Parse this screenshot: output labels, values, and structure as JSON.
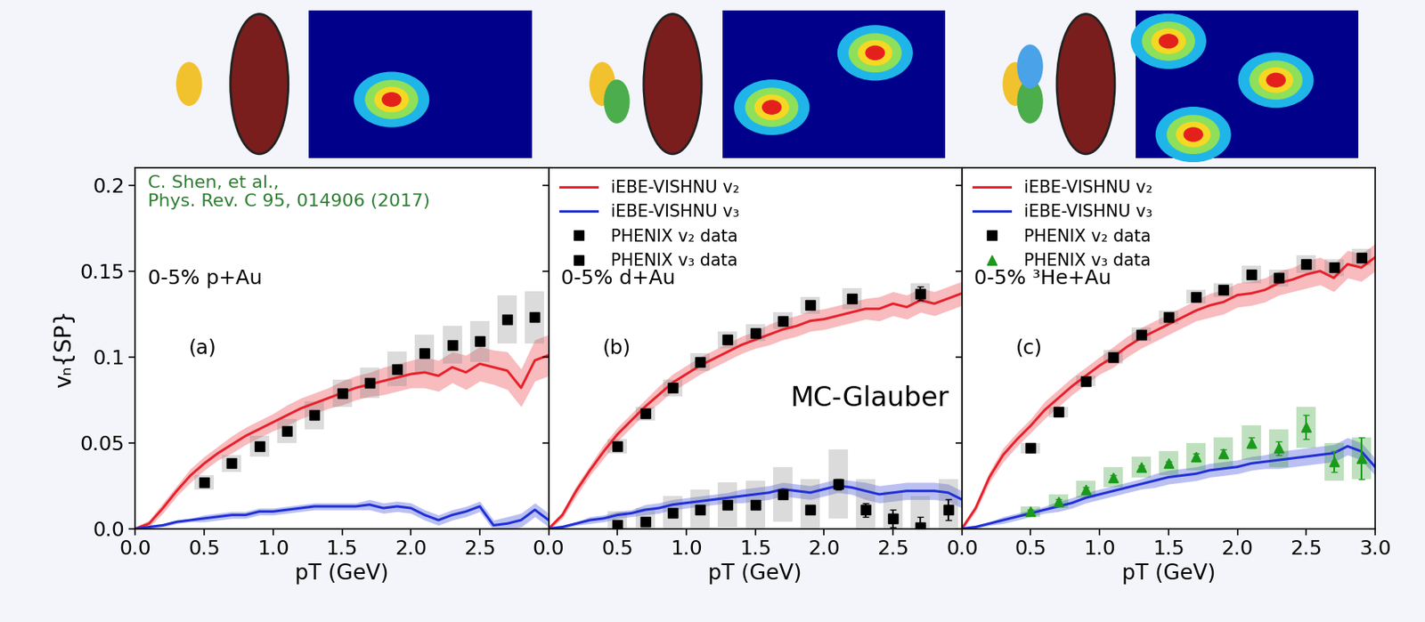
{
  "chart_data": [
    {
      "type": "line",
      "x_label": "pT (GeV)",
      "y_label": "vₙ{SP}",
      "xlim": [
        0.0,
        3.0
      ],
      "ylim": [
        0.0,
        0.21
      ],
      "xticks": [
        0.0,
        0.5,
        1.0,
        1.5,
        2.0,
        2.5
      ],
      "yticks": [
        0.0,
        0.05,
        0.1,
        0.15,
        0.2
      ],
      "annotations": [
        "C. Shen, et al.,\nPhys. Rev. C 95, 014906 (2017)",
        "0-5% p+Au",
        "(a)"
      ],
      "series": [
        {
          "name": "iEBE-VISHNU v₂",
          "type": "line",
          "color": "#e8202a",
          "line_style": "solid",
          "marker": "none",
          "x": [
            0.0,
            0.1,
            0.2,
            0.3,
            0.4,
            0.5,
            0.6,
            0.7,
            0.8,
            0.9,
            1.0,
            1.1,
            1.2,
            1.3,
            1.4,
            1.5,
            1.6,
            1.7,
            1.8,
            1.9,
            2.0,
            2.1,
            2.2,
            2.3,
            2.4,
            2.5,
            2.6,
            2.7,
            2.8,
            2.9,
            3.0
          ],
          "values": [
            0.0,
            0.003,
            0.012,
            0.022,
            0.031,
            0.038,
            0.044,
            0.049,
            0.054,
            0.058,
            0.062,
            0.066,
            0.07,
            0.073,
            0.076,
            0.079,
            0.082,
            0.084,
            0.086,
            0.088,
            0.09,
            0.091,
            0.089,
            0.094,
            0.091,
            0.096,
            0.094,
            0.092,
            0.082,
            0.098,
            0.101
          ],
          "band": [
            0.001,
            0.002,
            0.003,
            0.003,
            0.004,
            0.004,
            0.004,
            0.005,
            0.005,
            0.005,
            0.005,
            0.006,
            0.006,
            0.006,
            0.006,
            0.007,
            0.007,
            0.007,
            0.008,
            0.008,
            0.008,
            0.009,
            0.009,
            0.009,
            0.01,
            0.01,
            0.01,
            0.011,
            0.011,
            0.012,
            0.012
          ]
        },
        {
          "name": "iEBE-VISHNU v₃",
          "type": "line",
          "color": "#1f2fd6",
          "line_style": "solid",
          "marker": "none",
          "x": [
            0.0,
            0.1,
            0.2,
            0.3,
            0.4,
            0.5,
            0.6,
            0.7,
            0.8,
            0.9,
            1.0,
            1.1,
            1.2,
            1.3,
            1.4,
            1.5,
            1.6,
            1.7,
            1.8,
            1.9,
            2.0,
            2.1,
            2.2,
            2.3,
            2.4,
            2.5,
            2.6,
            2.7,
            2.8,
            2.9,
            3.0
          ],
          "values": [
            0.0,
            0.001,
            0.002,
            0.004,
            0.005,
            0.006,
            0.007,
            0.008,
            0.008,
            0.01,
            0.01,
            0.011,
            0.012,
            0.013,
            0.013,
            0.013,
            0.013,
            0.014,
            0.012,
            0.013,
            0.012,
            0.008,
            0.005,
            0.008,
            0.01,
            0.013,
            0.002,
            0.003,
            0.005,
            0.011,
            0.005
          ],
          "band": [
            0.001,
            0.001,
            0.001,
            0.001,
            0.001,
            0.002,
            0.002,
            0.002,
            0.002,
            0.002,
            0.002,
            0.002,
            0.002,
            0.002,
            0.002,
            0.002,
            0.002,
            0.003,
            0.003,
            0.003,
            0.003,
            0.003,
            0.003,
            0.003,
            0.003,
            0.003,
            0.003,
            0.004,
            0.004,
            0.004,
            0.004
          ]
        },
        {
          "name": "PHENIX v₂ data",
          "type": "scatter",
          "color": "#000000",
          "marker": "square",
          "x": [
            0.5,
            0.7,
            0.9,
            1.1,
            1.3,
            1.5,
            1.7,
            1.9,
            2.1,
            2.3,
            2.5,
            2.7,
            2.9
          ],
          "values": [
            0.027,
            0.038,
            0.048,
            0.057,
            0.066,
            0.079,
            0.085,
            0.093,
            0.102,
            0.107,
            0.109,
            0.122,
            0.123
          ],
          "errors": [
            0.001,
            0.001,
            0.001,
            0.001,
            0.001,
            0.001,
            0.001,
            0.001,
            0.001,
            0.001,
            0.001,
            0.001,
            0.001
          ],
          "sys_errors": [
            0.004,
            0.005,
            0.006,
            0.007,
            0.008,
            0.008,
            0.009,
            0.01,
            0.011,
            0.011,
            0.012,
            0.014,
            0.015
          ]
        }
      ]
    },
    {
      "type": "line",
      "x_label": "pT (GeV)",
      "xlim": [
        0.0,
        3.0
      ],
      "ylim": [
        0.0,
        0.21
      ],
      "xticks": [
        0.0,
        0.5,
        1.0,
        1.5,
        2.0,
        2.5
      ],
      "yticks": [
        0.0,
        0.05,
        0.1,
        0.15,
        0.2
      ],
      "tick_labels": "x",
      "legend": "upper left",
      "annotations": [
        "0-5% d+Au",
        "(b)",
        "MC-Glauber"
      ],
      "series": [
        {
          "name": "iEBE-VISHNU v₂",
          "type": "line",
          "color": "#e8202a",
          "line_style": "solid",
          "marker": "none",
          "x": [
            0.0,
            0.1,
            0.2,
            0.3,
            0.4,
            0.5,
            0.6,
            0.7,
            0.8,
            0.9,
            1.0,
            1.1,
            1.2,
            1.3,
            1.4,
            1.5,
            1.6,
            1.7,
            1.8,
            1.9,
            2.0,
            2.1,
            2.2,
            2.3,
            2.4,
            2.5,
            2.6,
            2.7,
            2.8,
            2.9,
            3.0
          ],
          "values": [
            0.0,
            0.008,
            0.022,
            0.034,
            0.045,
            0.055,
            0.063,
            0.071,
            0.078,
            0.085,
            0.09,
            0.095,
            0.099,
            0.103,
            0.107,
            0.11,
            0.113,
            0.116,
            0.118,
            0.121,
            0.122,
            0.124,
            0.126,
            0.128,
            0.128,
            0.131,
            0.129,
            0.133,
            0.131,
            0.134,
            0.137
          ],
          "band": [
            0.001,
            0.002,
            0.003,
            0.003,
            0.004,
            0.004,
            0.004,
            0.004,
            0.005,
            0.005,
            0.005,
            0.005,
            0.005,
            0.005,
            0.005,
            0.005,
            0.006,
            0.006,
            0.006,
            0.006,
            0.006,
            0.006,
            0.006,
            0.006,
            0.007,
            0.007,
            0.007,
            0.007,
            0.007,
            0.007,
            0.007
          ]
        },
        {
          "name": "iEBE-VISHNU v₃",
          "type": "line",
          "color": "#1f2fd6",
          "line_style": "solid",
          "marker": "none",
          "x": [
            0.0,
            0.1,
            0.2,
            0.3,
            0.4,
            0.5,
            0.6,
            0.7,
            0.8,
            0.9,
            1.0,
            1.1,
            1.2,
            1.3,
            1.4,
            1.5,
            1.6,
            1.7,
            1.8,
            1.9,
            2.0,
            2.1,
            2.2,
            2.3,
            2.4,
            2.5,
            2.6,
            2.7,
            2.8,
            2.9,
            3.0
          ],
          "values": [
            0.0,
            0.001,
            0.003,
            0.005,
            0.006,
            0.008,
            0.009,
            0.011,
            0.012,
            0.014,
            0.015,
            0.016,
            0.017,
            0.018,
            0.019,
            0.02,
            0.021,
            0.023,
            0.022,
            0.021,
            0.023,
            0.025,
            0.024,
            0.022,
            0.02,
            0.021,
            0.022,
            0.022,
            0.022,
            0.021,
            0.017
          ],
          "band": [
            0.001,
            0.001,
            0.001,
            0.002,
            0.002,
            0.002,
            0.002,
            0.003,
            0.003,
            0.003,
            0.003,
            0.003,
            0.003,
            0.003,
            0.004,
            0.004,
            0.004,
            0.004,
            0.004,
            0.004,
            0.004,
            0.004,
            0.004,
            0.005,
            0.005,
            0.005,
            0.005,
            0.005,
            0.005,
            0.005,
            0.005
          ]
        },
        {
          "name": "PHENIX v₂ data",
          "type": "scatter",
          "color": "#000000",
          "marker": "square",
          "x": [
            0.5,
            0.7,
            0.9,
            1.1,
            1.3,
            1.5,
            1.7,
            1.9,
            2.2,
            2.7
          ],
          "values": [
            0.048,
            0.067,
            0.082,
            0.097,
            0.11,
            0.114,
            0.121,
            0.13,
            0.134,
            0.137
          ],
          "errors": [
            0.001,
            0.001,
            0.001,
            0.001,
            0.001,
            0.001,
            0.001,
            0.001,
            0.002,
            0.004
          ],
          "sys_errors": [
            0.004,
            0.004,
            0.005,
            0.005,
            0.005,
            0.005,
            0.005,
            0.005,
            0.006,
            0.006
          ]
        },
        {
          "name": "PHENIX v₃ data",
          "type": "scatter",
          "color": "#000000",
          "marker": "square",
          "x": [
            0.5,
            0.7,
            0.9,
            1.1,
            1.3,
            1.5,
            1.7,
            1.9,
            2.1,
            2.3,
            2.5,
            2.7,
            2.9
          ],
          "values": [
            0.002,
            0.004,
            0.009,
            0.011,
            0.014,
            0.014,
            0.02,
            0.011,
            0.026,
            0.011,
            0.006,
            0.001,
            0.011
          ],
          "errors": [
            0.001,
            0.001,
            0.001,
            0.001,
            0.001,
            0.001,
            0.002,
            0.002,
            0.003,
            0.004,
            0.005,
            0.006,
            0.006
          ],
          "sys_errors": [
            0.008,
            0.008,
            0.01,
            0.012,
            0.013,
            0.014,
            0.016,
            0.018,
            0.02,
            0.018,
            0.016,
            0.018,
            0.018
          ]
        }
      ]
    },
    {
      "type": "line",
      "x_label": "pT (GeV)",
      "xlim": [
        0.0,
        3.0
      ],
      "ylim": [
        0.0,
        0.21
      ],
      "xticks": [
        0.0,
        0.5,
        1.0,
        1.5,
        2.0,
        2.5,
        3.0
      ],
      "yticks": [
        0.0,
        0.05,
        0.1,
        0.15,
        0.2
      ],
      "tick_labels": "x",
      "legend": "upper left",
      "annotations": [
        "0-5% ³He+Au",
        "(c)"
      ],
      "series": [
        {
          "name": "iEBE-VISHNU v₂",
          "type": "line",
          "color": "#e8202a",
          "line_style": "solid",
          "marker": "none",
          "x": [
            0.0,
            0.1,
            0.2,
            0.3,
            0.4,
            0.5,
            0.6,
            0.7,
            0.8,
            0.9,
            1.0,
            1.1,
            1.2,
            1.3,
            1.4,
            1.5,
            1.6,
            1.7,
            1.8,
            1.9,
            2.0,
            2.1,
            2.2,
            2.3,
            2.4,
            2.5,
            2.6,
            2.7,
            2.8,
            2.9,
            3.0
          ],
          "values": [
            0.0,
            0.012,
            0.03,
            0.043,
            0.052,
            0.06,
            0.069,
            0.076,
            0.083,
            0.089,
            0.095,
            0.1,
            0.106,
            0.111,
            0.115,
            0.119,
            0.123,
            0.127,
            0.13,
            0.132,
            0.136,
            0.137,
            0.139,
            0.143,
            0.145,
            0.148,
            0.15,
            0.146,
            0.154,
            0.152,
            0.158
          ],
          "band": [
            0.001,
            0.002,
            0.003,
            0.004,
            0.004,
            0.004,
            0.005,
            0.005,
            0.005,
            0.005,
            0.005,
            0.006,
            0.006,
            0.006,
            0.006,
            0.006,
            0.006,
            0.006,
            0.007,
            0.007,
            0.007,
            0.007,
            0.007,
            0.007,
            0.007,
            0.008,
            0.008,
            0.008,
            0.008,
            0.008,
            0.008
          ]
        },
        {
          "name": "iEBE-VISHNU v₃",
          "type": "line",
          "color": "#1f2fd6",
          "line_style": "solid",
          "marker": "none",
          "x": [
            0.0,
            0.1,
            0.2,
            0.3,
            0.4,
            0.5,
            0.6,
            0.7,
            0.8,
            0.9,
            1.0,
            1.1,
            1.2,
            1.3,
            1.4,
            1.5,
            1.6,
            1.7,
            1.8,
            1.9,
            2.0,
            2.1,
            2.2,
            2.3,
            2.4,
            2.5,
            2.6,
            2.7,
            2.8,
            2.9,
            3.0
          ],
          "values": [
            0.0,
            0.001,
            0.003,
            0.005,
            0.007,
            0.009,
            0.011,
            0.013,
            0.015,
            0.018,
            0.02,
            0.022,
            0.024,
            0.026,
            0.028,
            0.03,
            0.031,
            0.032,
            0.034,
            0.035,
            0.036,
            0.038,
            0.039,
            0.04,
            0.041,
            0.042,
            0.043,
            0.044,
            0.048,
            0.045,
            0.036
          ],
          "band": [
            0.001,
            0.001,
            0.001,
            0.002,
            0.002,
            0.002,
            0.002,
            0.003,
            0.003,
            0.003,
            0.003,
            0.003,
            0.003,
            0.003,
            0.004,
            0.004,
            0.004,
            0.004,
            0.004,
            0.004,
            0.004,
            0.004,
            0.004,
            0.005,
            0.005,
            0.005,
            0.005,
            0.005,
            0.005,
            0.005,
            0.005
          ]
        },
        {
          "name": "PHENIX v₂ data",
          "type": "scatter",
          "color": "#000000",
          "marker": "square",
          "x": [
            0.5,
            0.7,
            0.9,
            1.1,
            1.3,
            1.5,
            1.7,
            1.9,
            2.1,
            2.3,
            2.5,
            2.7,
            2.9
          ],
          "values": [
            0.047,
            0.068,
            0.086,
            0.1,
            0.113,
            0.123,
            0.135,
            0.139,
            0.148,
            0.146,
            0.154,
            0.152,
            0.158
          ],
          "errors": [
            0.001,
            0.001,
            0.001,
            0.001,
            0.001,
            0.001,
            0.001,
            0.001,
            0.001,
            0.001,
            0.001,
            0.002,
            0.002
          ],
          "sys_errors": [
            0.003,
            0.003,
            0.003,
            0.004,
            0.004,
            0.004,
            0.004,
            0.004,
            0.005,
            0.005,
            0.005,
            0.005,
            0.005
          ]
        },
        {
          "name": "PHENIX v₃ data",
          "type": "scatter",
          "color": "#1a9a1a",
          "marker": "triangle",
          "x": [
            0.5,
            0.7,
            0.9,
            1.1,
            1.3,
            1.5,
            1.7,
            1.9,
            2.1,
            2.3,
            2.5,
            2.7,
            2.9
          ],
          "values": [
            0.01,
            0.016,
            0.023,
            0.03,
            0.036,
            0.038,
            0.042,
            0.044,
            0.05,
            0.047,
            0.059,
            0.039,
            0.041
          ],
          "errors": [
            0.001,
            0.001,
            0.001,
            0.001,
            0.001,
            0.001,
            0.002,
            0.002,
            0.003,
            0.004,
            0.007,
            0.006,
            0.012
          ],
          "sys_errors": [
            0.003,
            0.004,
            0.005,
            0.006,
            0.006,
            0.007,
            0.008,
            0.009,
            0.01,
            0.011,
            0.012,
            0.011,
            0.012
          ]
        }
      ]
    }
  ]
}
